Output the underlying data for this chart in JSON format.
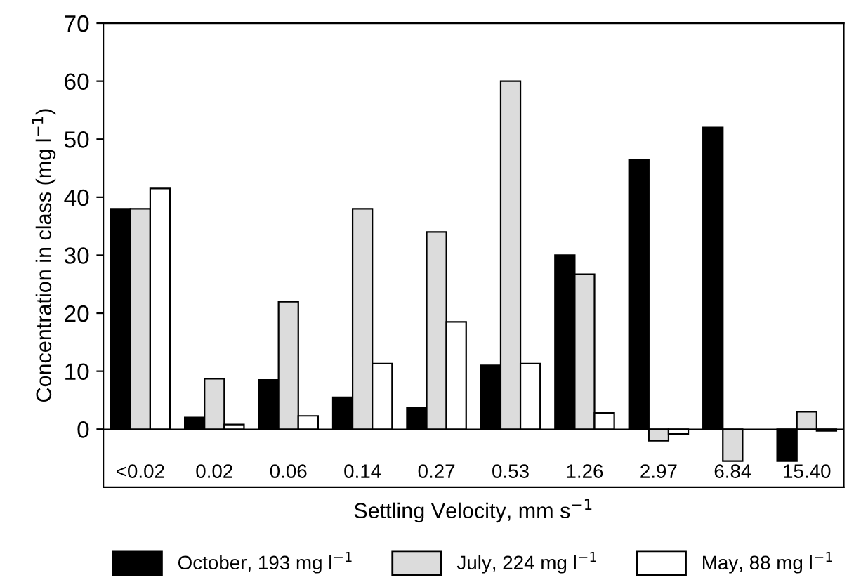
{
  "chart_data": {
    "type": "bar",
    "xlabel": "Settling Velocity, mm s$^{−1}$",
    "ylabel": "Concentration in class (mg l$^{−1}$)",
    "categories": [
      "<0.02",
      "0.02",
      "0.06",
      "0.14",
      "0.27",
      "0.53",
      "1.26",
      "2.97",
      "6.84",
      "15.40"
    ],
    "series": [
      {
        "name": "October, 193 mg l$^{−1}$",
        "color": "#000000",
        "values": [
          38,
          2,
          8.5,
          5.5,
          3.7,
          11,
          30,
          46.5,
          52,
          -5.5
        ]
      },
      {
        "name": "July, 224 mg l$^{−1}$",
        "color": "#dcdcdc",
        "values": [
          38,
          8.7,
          22,
          38,
          34,
          60,
          26.7,
          -2,
          -5.5,
          3
        ]
      },
      {
        "name": "May, 88 mg l$^{−1}$",
        "color": "#ffffff",
        "values": [
          41.5,
          0.8,
          2.3,
          11.3,
          18.5,
          11.3,
          2.8,
          -0.8,
          null,
          -0.3
        ]
      }
    ],
    "ylim": [
      -10,
      70
    ],
    "yticks": [
      0,
      10,
      20,
      30,
      40,
      50,
      60,
      70
    ],
    "ref_lines": [
      {
        "axis": "y",
        "value": 0,
        "color": "#000000"
      }
    ],
    "grid": false,
    "legend": "bottom"
  }
}
